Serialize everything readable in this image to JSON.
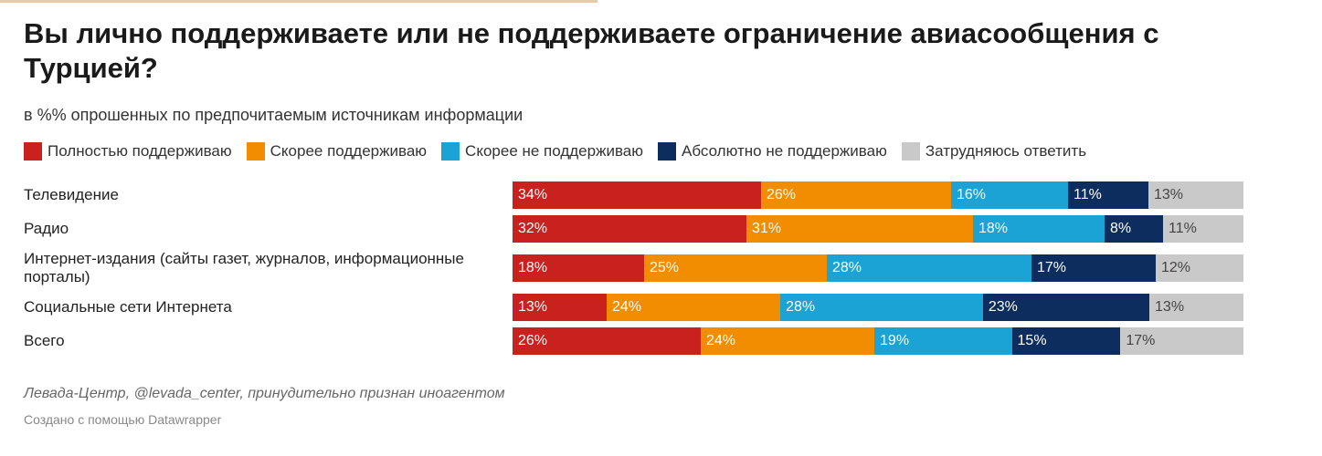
{
  "title": "Вы лично поддерживаете или не поддерживаете ограничение авиасообщения с Турцией?",
  "subtitle": "в %% опрошенных по предпочитаемым источникам информации",
  "source": "Левада-Центр, @levada_center, принудительно признан иноагентом",
  "credit": "Создано с помощью Datawrapper",
  "legend": [
    {
      "label": "Полностью поддерживаю",
      "color": "#c9211e"
    },
    {
      "label": "Скорее поддерживаю",
      "color": "#f28c00"
    },
    {
      "label": "Скорее не поддерживаю",
      "color": "#1aa3d4"
    },
    {
      "label": "Абсолютно не поддерживаю",
      "color": "#0d2d5e"
    },
    {
      "label": "Затрудняюсь ответить",
      "color": "#c9c9c9"
    }
  ],
  "chart_data": {
    "type": "bar",
    "stacked": true,
    "orientation": "horizontal",
    "title": "Вы лично поддерживаете или не поддерживаете ограничение авиасообщения с Турцией?",
    "subtitle": "в %% опрошенных по предпочитаемым источникам информации",
    "categories": [
      "Телевидение",
      "Радио",
      "Интернет-издания (сайты газет, журналов, информационные порталы)",
      "Социальные сети Интернета",
      "Всего"
    ],
    "series": [
      {
        "name": "Полностью поддерживаю",
        "color": "#c9211e",
        "values": [
          34,
          32,
          18,
          13,
          26
        ]
      },
      {
        "name": "Скорее поддерживаю",
        "color": "#f28c00",
        "values": [
          26,
          31,
          25,
          24,
          24
        ]
      },
      {
        "name": "Скорее не поддерживаю",
        "color": "#1aa3d4",
        "values": [
          16,
          18,
          28,
          28,
          19
        ]
      },
      {
        "name": "Абсолютно не поддерживаю",
        "color": "#0d2d5e",
        "values": [
          11,
          8,
          17,
          23,
          15
        ]
      },
      {
        "name": "Затрудняюсь ответить",
        "color": "#c9c9c9",
        "values": [
          13,
          11,
          12,
          13,
          17
        ]
      }
    ],
    "value_suffix": "%",
    "legend_position": "top",
    "grid": false
  }
}
